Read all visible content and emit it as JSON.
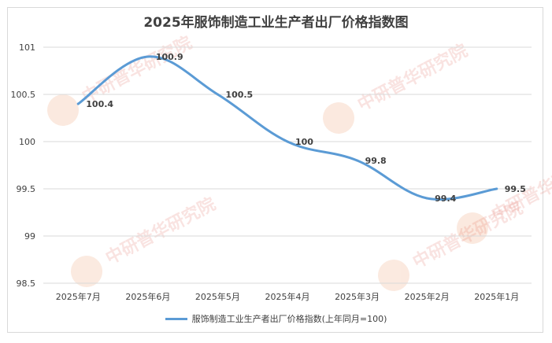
{
  "chart_data": {
    "type": "line",
    "title": "2025年服饰制造工业生产者出厂价格指数图",
    "categories": [
      "2025年7月",
      "2025年6月",
      "2025年5月",
      "2025年4月",
      "2025年3月",
      "2025年2月",
      "2025年1月"
    ],
    "series": [
      {
        "name": "服饰制造工业生产者出厂价格指数(上年同月=100)",
        "values": [
          100.4,
          100.9,
          100.5,
          100,
          99.8,
          99.4,
          99.5
        ],
        "color": "#5b9bd5"
      }
    ],
    "data_labels": [
      "100.4",
      "100.9",
      "100.5",
      "100",
      "99.8",
      "99.4",
      "99.5"
    ],
    "ylim": [
      98.5,
      101
    ],
    "yticks": [
      "98.5",
      "99",
      "99.5",
      "100",
      "100.5",
      "101"
    ],
    "grid": true,
    "legend_position": "bottom",
    "watermark": "中研普华研究院 www.ChinaIRN.com"
  }
}
